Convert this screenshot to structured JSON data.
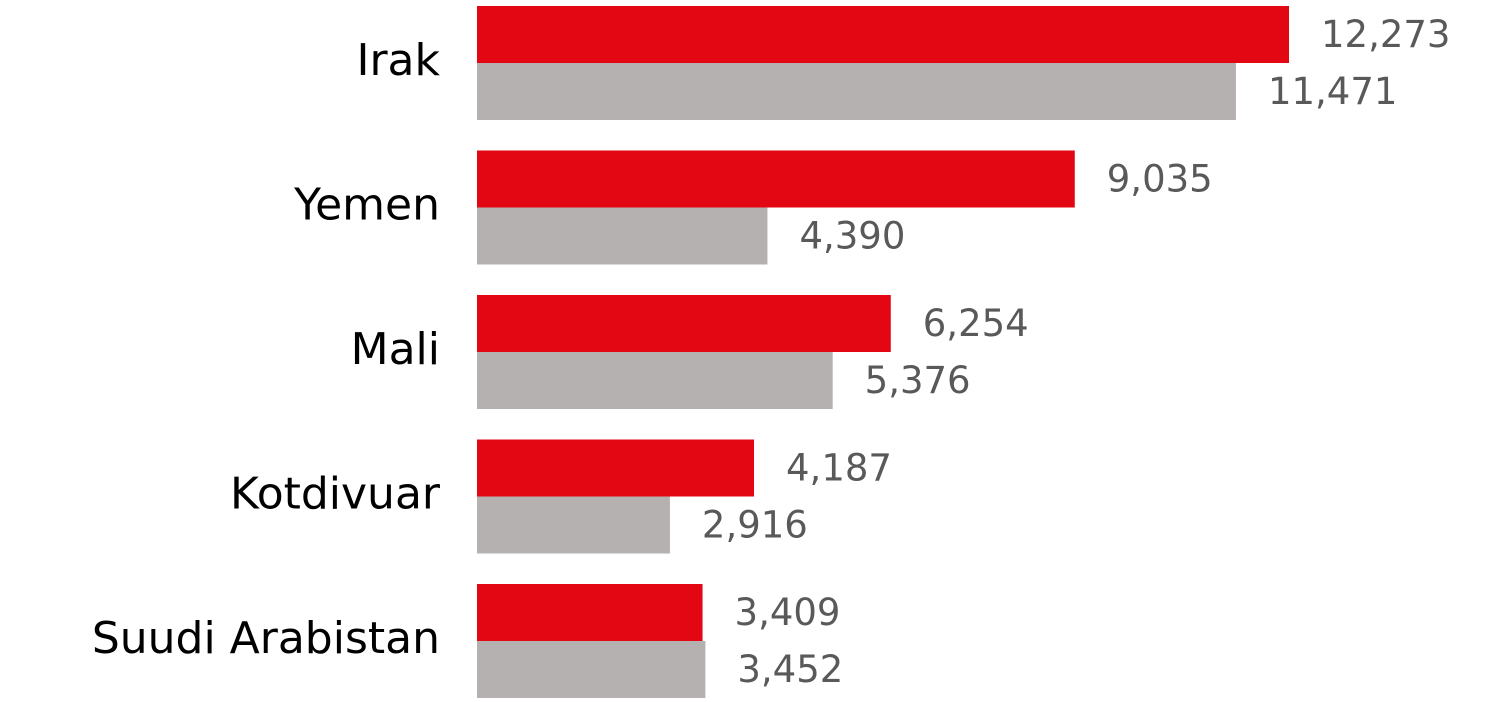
{
  "chart_data": {
    "type": "barh",
    "categories": [
      "Irak",
      "Yemen",
      "Mali",
      "Kotdivuar",
      "Suudi Arabistan"
    ],
    "series": [
      {
        "color": "#e30613",
        "values": [
          12273,
          9035,
          6254,
          4187,
          3409
        ],
        "value_labels": [
          "12,273",
          "9,035",
          "6,254",
          "4,187",
          "3,409"
        ]
      },
      {
        "color": "#b5b1b0",
        "values": [
          11471,
          4390,
          5376,
          2916,
          3452
        ],
        "value_labels": [
          "11,471",
          "4,390",
          "5,376",
          "2,916",
          "3,452"
        ]
      }
    ]
  }
}
